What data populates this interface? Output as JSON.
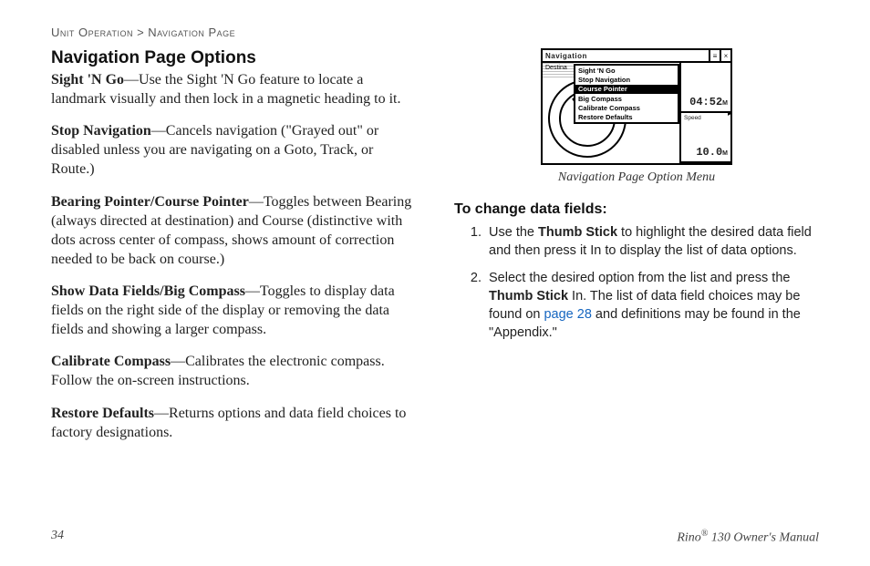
{
  "breadcrumb": {
    "section": "Unit Operation",
    "sep": " > ",
    "page": "Navigation Page"
  },
  "heading": "Navigation Page Options",
  "options": [
    {
      "term": "Sight 'N Go",
      "desc": "—Use the Sight 'N Go feature to locate a landmark visually and then lock in a magnetic heading to it."
    },
    {
      "term": "Stop Navigation",
      "desc": "—Cancels navigation (\"Grayed out\" or disabled unless you are navigating on a Goto, Track, or Route.)"
    },
    {
      "term": "Bearing Pointer/Course Pointer",
      "desc": "—Toggles between Bearing (always directed at destination) and Course (distinctive with dots across center of compass, shows amount of correction needed to be back on course.)"
    },
    {
      "term": "Show Data Fields/Big Compass",
      "desc": "—Toggles to display data fields on the right side of the display or removing the data fields and showing a larger compass."
    },
    {
      "term": "Calibrate Compass",
      "desc": "—Calibrates the electronic compass. Follow the on-screen instructions."
    },
    {
      "term": "Restore Defaults",
      "desc": "—Returns options and data field choices to factory designations."
    }
  ],
  "figure": {
    "caption": "Navigation Page Option Menu",
    "titlebar": "Navigation",
    "dest_label": "Destina",
    "menu_items": [
      "Sight 'N Go",
      "Stop Navigation",
      "Course Pointer",
      "Big Compass",
      "Calibrate Compass",
      "Restore Defaults"
    ],
    "selected_index": 2,
    "right_cells": [
      {
        "label": "",
        "value": "04:52",
        "unit": "M"
      },
      {
        "label": "Speed",
        "value": "10.0",
        "unit": "M"
      }
    ],
    "arrow_glyph": "▸"
  },
  "change_fields": {
    "heading": "To change data fields:",
    "steps": [
      {
        "pre": "Use the ",
        "bold": "Thumb Stick",
        "post": " to highlight the desired data field and then press it In to display the list of data options."
      },
      {
        "pre": "Select the desired option from the list and press the ",
        "bold": "Thumb Stick",
        "post_a": " In. The list of data field choices may be found on ",
        "link": "page 28",
        "post_b": " and definitions may be found in the \"Appendix.\""
      }
    ]
  },
  "footer": {
    "page_number": "34",
    "product": "Rino",
    "reg": "®",
    "tail": " 130 Owner's Manual"
  }
}
